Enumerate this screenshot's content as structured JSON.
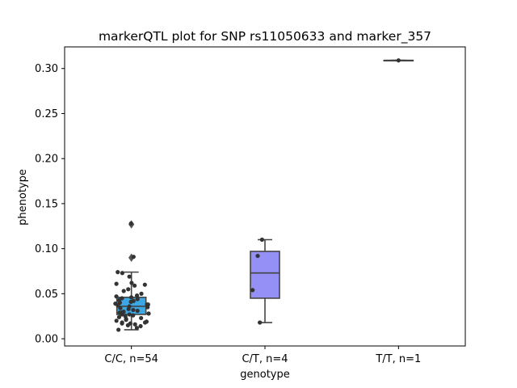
{
  "chart_data": {
    "type": "box",
    "title": "markerQTL plot for SNP rs11050633 and marker_357",
    "xlabel": "genotype",
    "ylabel": "phenotype",
    "ylim": [
      -0.008,
      0.324
    ],
    "yticks": [
      0.0,
      0.05,
      0.1,
      0.15,
      0.2,
      0.25,
      0.3
    ],
    "ytick_labels": [
      "0.00",
      "0.05",
      "0.10",
      "0.15",
      "0.20",
      "0.25",
      "0.30"
    ],
    "categories": [
      "C/C, n=54",
      "C/T, n=4",
      "T/T, n=1"
    ],
    "colors": {
      "C/C": "#3ba7e5",
      "C/T": "#9590f5",
      "T/T": "#c9b3f2",
      "points": "#333333",
      "lines": "#444444"
    },
    "boxes": [
      {
        "q1": 0.027,
        "median": 0.036,
        "q3": 0.046,
        "whisker_low": 0.01,
        "whisker_high": 0.074,
        "outliers": [
          0.127,
          0.09
        ]
      },
      {
        "q1": 0.045,
        "median": 0.073,
        "q3": 0.097,
        "whisker_low": 0.018,
        "whisker_high": 0.11,
        "outliers": []
      },
      {
        "q1": 0.309,
        "median": 0.309,
        "q3": 0.309,
        "whisker_low": 0.309,
        "whisker_high": 0.309,
        "outliers": []
      }
    ],
    "points": [
      [
        0.128,
        0.091,
        0.074,
        0.073,
        0.069,
        0.062,
        0.061,
        0.06,
        0.059,
        0.055,
        0.053,
        0.05,
        0.048,
        0.047,
        0.046,
        0.045,
        0.044,
        0.043,
        0.042,
        0.041,
        0.04,
        0.039,
        0.038,
        0.038,
        0.037,
        0.036,
        0.035,
        0.034,
        0.033,
        0.032,
        0.031,
        0.03,
        0.029,
        0.028,
        0.027,
        0.027,
        0.026,
        0.025,
        0.024,
        0.023,
        0.022,
        0.021,
        0.02,
        0.019,
        0.018,
        0.018,
        0.017,
        0.017,
        0.016,
        0.015,
        0.014,
        0.012,
        0.01,
        0.029
      ],
      [
        0.11,
        0.092,
        0.054,
        0.018
      ],
      [
        0.309
      ]
    ]
  }
}
